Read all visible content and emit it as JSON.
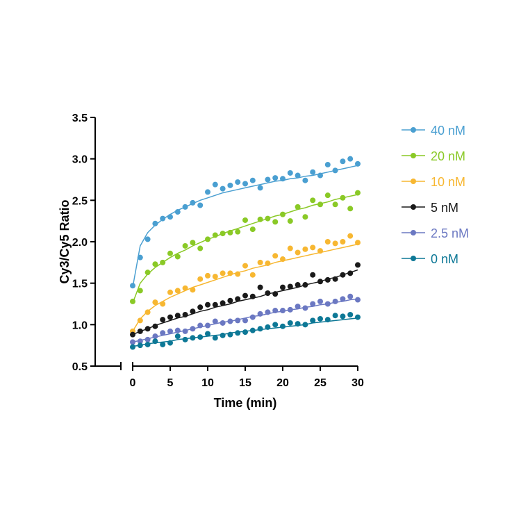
{
  "chart_data": {
    "type": "scatter",
    "title": "",
    "xlabel": "Time (min)",
    "ylabel": "Cy3/Cy5 Ratio",
    "xlim": [
      0,
      30
    ],
    "ylim": [
      0.5,
      3.5
    ],
    "xticks": [
      "0",
      "5",
      "10",
      "15",
      "20",
      "25",
      "30"
    ],
    "yticks": [
      "0.5",
      "1.0",
      "1.5",
      "2.0",
      "2.5",
      "3.0",
      "3.5"
    ],
    "grid": false,
    "legend_position": "right",
    "series": [
      {
        "name": "40 nM",
        "color": "#4a9fd1",
        "x": [
          0,
          1,
          2,
          3,
          4,
          5,
          6,
          7,
          8,
          9,
          10,
          11,
          12,
          13,
          14,
          15,
          16,
          17,
          18,
          19,
          20,
          21,
          22,
          23,
          24,
          25,
          26,
          27,
          28,
          29,
          30
        ],
        "y": [
          1.47,
          1.81,
          2.03,
          2.22,
          2.28,
          2.3,
          2.36,
          2.42,
          2.47,
          2.44,
          2.6,
          2.69,
          2.64,
          2.68,
          2.72,
          2.7,
          2.74,
          2.65,
          2.75,
          2.77,
          2.76,
          2.83,
          2.8,
          2.74,
          2.84,
          2.8,
          2.93,
          2.86,
          2.97,
          3.0,
          2.94
        ],
        "fit": [
          1.45,
          1.95,
          2.11,
          2.2,
          2.27,
          2.33,
          2.38,
          2.42,
          2.46,
          2.5,
          2.53,
          2.56,
          2.59,
          2.61,
          2.63,
          2.65,
          2.67,
          2.69,
          2.71,
          2.73,
          2.74,
          2.76,
          2.77,
          2.79,
          2.8,
          2.82,
          2.84,
          2.86,
          2.88,
          2.9,
          2.92
        ]
      },
      {
        "name": "20 nM",
        "color": "#8ac926",
        "x": [
          0,
          1,
          2,
          3,
          4,
          5,
          6,
          7,
          8,
          9,
          10,
          11,
          12,
          13,
          14,
          15,
          16,
          17,
          18,
          19,
          20,
          21,
          22,
          23,
          24,
          25,
          26,
          27,
          28,
          29,
          30
        ],
        "y": [
          1.28,
          1.41,
          1.63,
          1.73,
          1.75,
          1.86,
          1.82,
          1.95,
          1.99,
          1.92,
          2.03,
          2.08,
          2.1,
          2.11,
          2.12,
          2.26,
          2.15,
          2.27,
          2.28,
          2.24,
          2.33,
          2.25,
          2.42,
          2.3,
          2.5,
          2.45,
          2.56,
          2.45,
          2.53,
          2.4,
          2.59
        ],
        "fit": [
          1.26,
          1.5,
          1.61,
          1.69,
          1.75,
          1.81,
          1.86,
          1.9,
          1.95,
          1.99,
          2.03,
          2.06,
          2.1,
          2.13,
          2.16,
          2.19,
          2.22,
          2.25,
          2.28,
          2.31,
          2.33,
          2.36,
          2.39,
          2.41,
          2.44,
          2.46,
          2.48,
          2.51,
          2.53,
          2.55,
          2.57
        ]
      },
      {
        "name": "10 nM",
        "color": "#f7b731",
        "x": [
          0,
          1,
          2,
          3,
          4,
          5,
          6,
          7,
          8,
          9,
          10,
          11,
          12,
          13,
          14,
          15,
          16,
          17,
          18,
          19,
          20,
          21,
          22,
          23,
          24,
          25,
          26,
          27,
          28,
          29,
          30
        ],
        "y": [
          0.92,
          1.05,
          1.15,
          1.27,
          1.25,
          1.39,
          1.41,
          1.44,
          1.42,
          1.55,
          1.59,
          1.58,
          1.62,
          1.62,
          1.61,
          1.71,
          1.6,
          1.75,
          1.74,
          1.83,
          1.79,
          1.92,
          1.87,
          1.91,
          1.93,
          1.89,
          2.0,
          1.98,
          2.0,
          2.07,
          1.99
        ],
        "fit": [
          0.92,
          1.07,
          1.16,
          1.23,
          1.28,
          1.33,
          1.37,
          1.41,
          1.45,
          1.48,
          1.51,
          1.54,
          1.57,
          1.6,
          1.63,
          1.65,
          1.68,
          1.7,
          1.72,
          1.75,
          1.77,
          1.79,
          1.81,
          1.83,
          1.85,
          1.87,
          1.89,
          1.91,
          1.93,
          1.95,
          1.97
        ]
      },
      {
        "name": "5 nM",
        "color": "#1a1a1a",
        "x": [
          0,
          1,
          2,
          3,
          4,
          5,
          6,
          7,
          8,
          9,
          10,
          11,
          12,
          13,
          14,
          15,
          16,
          17,
          18,
          19,
          20,
          21,
          22,
          23,
          24,
          25,
          26,
          27,
          28,
          29,
          30
        ],
        "y": [
          0.88,
          0.92,
          0.95,
          0.98,
          1.06,
          1.09,
          1.11,
          1.12,
          1.16,
          1.21,
          1.24,
          1.24,
          1.26,
          1.29,
          1.31,
          1.35,
          1.34,
          1.45,
          1.38,
          1.37,
          1.45,
          1.46,
          1.48,
          1.48,
          1.6,
          1.52,
          1.54,
          1.55,
          1.6,
          1.62,
          1.72
        ],
        "fit": [
          0.88,
          0.92,
          0.95,
          0.99,
          1.02,
          1.05,
          1.08,
          1.1,
          1.13,
          1.16,
          1.18,
          1.21,
          1.23,
          1.25,
          1.28,
          1.3,
          1.32,
          1.34,
          1.37,
          1.39,
          1.41,
          1.43,
          1.45,
          1.48,
          1.5,
          1.52,
          1.55,
          1.57,
          1.6,
          1.63,
          1.66
        ]
      },
      {
        "name": "2.5 nM",
        "color": "#6b78c2",
        "x": [
          0,
          1,
          2,
          3,
          4,
          5,
          6,
          7,
          8,
          9,
          10,
          11,
          12,
          13,
          14,
          15,
          16,
          17,
          18,
          19,
          20,
          21,
          22,
          23,
          24,
          25,
          26,
          27,
          28,
          29,
          30
        ],
        "y": [
          0.79,
          0.8,
          0.82,
          0.86,
          0.9,
          0.92,
          0.93,
          0.92,
          0.95,
          0.99,
          0.99,
          1.04,
          1.02,
          1.04,
          1.05,
          1.05,
          1.09,
          1.13,
          1.15,
          1.17,
          1.17,
          1.18,
          1.22,
          1.2,
          1.25,
          1.28,
          1.25,
          1.28,
          1.31,
          1.34,
          1.3
        ],
        "fit": [
          0.79,
          0.81,
          0.83,
          0.85,
          0.87,
          0.89,
          0.91,
          0.93,
          0.95,
          0.97,
          0.99,
          1.01,
          1.03,
          1.04,
          1.06,
          1.08,
          1.1,
          1.11,
          1.13,
          1.15,
          1.16,
          1.18,
          1.19,
          1.21,
          1.22,
          1.24,
          1.25,
          1.27,
          1.28,
          1.3,
          1.31
        ]
      },
      {
        "name": "0 nM",
        "color": "#0d7896",
        "x": [
          0,
          1,
          2,
          3,
          4,
          5,
          6,
          7,
          8,
          9,
          10,
          11,
          12,
          13,
          14,
          15,
          16,
          17,
          18,
          19,
          20,
          21,
          22,
          23,
          24,
          25,
          26,
          27,
          28,
          29,
          30
        ],
        "y": [
          0.73,
          0.75,
          0.76,
          0.8,
          0.76,
          0.78,
          0.86,
          0.82,
          0.84,
          0.85,
          0.89,
          0.84,
          0.87,
          0.88,
          0.9,
          0.91,
          0.93,
          0.95,
          0.97,
          1.0,
          0.98,
          1.02,
          1.01,
          1.0,
          1.05,
          1.07,
          1.06,
          1.11,
          1.1,
          1.12,
          1.09
        ],
        "fit": [
          0.74,
          0.75,
          0.77,
          0.78,
          0.79,
          0.8,
          0.82,
          0.83,
          0.84,
          0.85,
          0.86,
          0.87,
          0.88,
          0.9,
          0.91,
          0.92,
          0.93,
          0.94,
          0.95,
          0.96,
          0.97,
          0.98,
          0.99,
          1.0,
          1.02,
          1.03,
          1.04,
          1.05,
          1.06,
          1.07,
          1.08
        ]
      }
    ]
  }
}
